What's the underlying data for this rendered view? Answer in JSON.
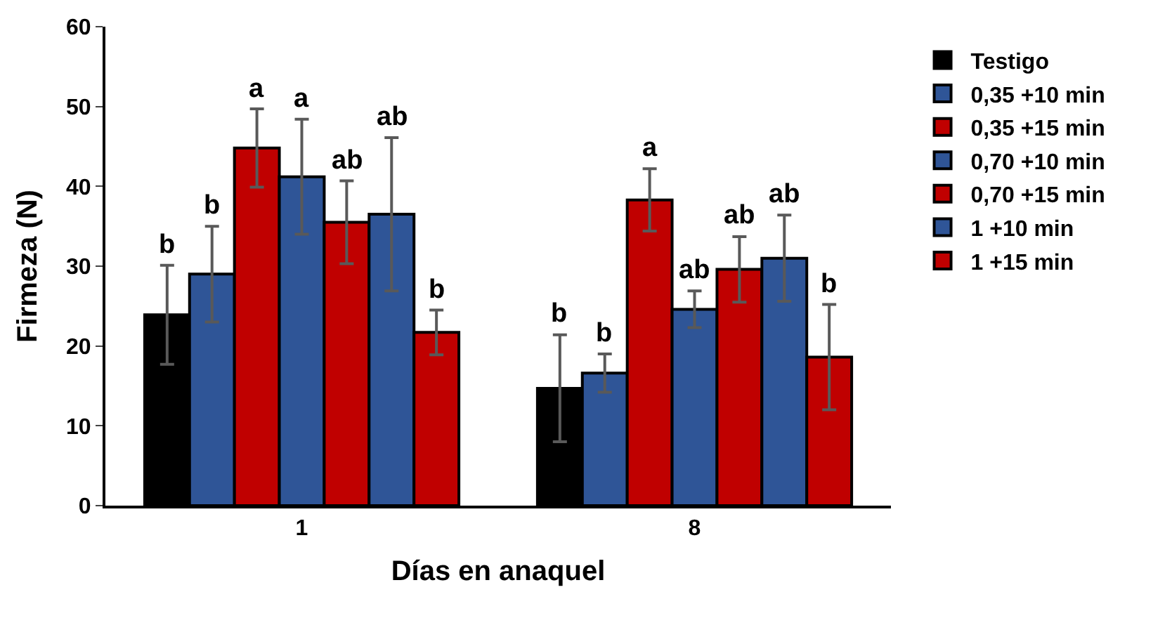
{
  "chart_data": {
    "type": "bar",
    "xlabel": "Días en anaquel",
    "ylabel": "Firmeza (N)",
    "categories": [
      "1",
      "8"
    ],
    "ylim": [
      0,
      60
    ],
    "yticks": [
      0,
      10,
      20,
      30,
      40,
      50,
      60
    ],
    "legend": "right",
    "series": [
      {
        "name": "Testigo",
        "color": "#000000",
        "values": [
          23.9,
          14.7
        ],
        "errors": [
          6.2,
          6.7
        ],
        "value_labels": [
          "b",
          "b"
        ]
      },
      {
        "name": "0,35 +10 min",
        "color": "#2f5597",
        "values": [
          29.0,
          16.6
        ],
        "errors": [
          6.0,
          2.4
        ],
        "value_labels": [
          "b",
          "b"
        ]
      },
      {
        "name": "0,35 +15 min",
        "color": "#c00000",
        "values": [
          44.8,
          38.3
        ],
        "errors": [
          4.9,
          3.9
        ],
        "value_labels": [
          "a",
          "a"
        ]
      },
      {
        "name": "0,70 +10 min",
        "color": "#2f5597",
        "values": [
          41.2,
          24.6
        ],
        "errors": [
          7.2,
          2.3
        ],
        "value_labels": [
          "a",
          "ab"
        ]
      },
      {
        "name": "0,70 +15 min",
        "color": "#c00000",
        "values": [
          35.5,
          29.6
        ],
        "errors": [
          5.2,
          4.1
        ],
        "value_labels": [
          "ab",
          "ab"
        ]
      },
      {
        "name": "1 +10 min",
        "color": "#2f5597",
        "values": [
          36.5,
          31.0
        ],
        "errors": [
          9.6,
          5.4
        ],
        "value_labels": [
          "ab",
          "ab"
        ]
      },
      {
        "name": "1 +15 min",
        "color": "#c00000",
        "values": [
          21.7,
          18.6
        ],
        "errors": [
          2.8,
          6.6
        ],
        "value_labels": [
          "b",
          "b"
        ]
      }
    ]
  }
}
